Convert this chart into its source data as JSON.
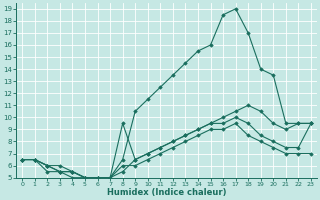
{
  "xlabel": "Humidex (Indice chaleur)",
  "ylabel": "",
  "xlim": [
    -0.5,
    23.5
  ],
  "ylim": [
    5,
    19.5
  ],
  "xticks": [
    0,
    1,
    2,
    3,
    4,
    5,
    6,
    7,
    8,
    9,
    10,
    11,
    12,
    13,
    14,
    15,
    16,
    17,
    18,
    19,
    20,
    21,
    22,
    23
  ],
  "yticks": [
    5,
    6,
    7,
    8,
    9,
    10,
    11,
    12,
    13,
    14,
    15,
    16,
    17,
    18,
    19
  ],
  "bg_color": "#c6e8e4",
  "line_color": "#1a6e5e",
  "line1_x": [
    0,
    1,
    2,
    3,
    4,
    5,
    6,
    7,
    8,
    9,
    10,
    11,
    12,
    13,
    14,
    15,
    16,
    17,
    18,
    19,
    20,
    21,
    22,
    23
  ],
  "line1_y": [
    6.5,
    6.5,
    6.0,
    6.0,
    5.5,
    5.0,
    5.0,
    5.0,
    6.5,
    10.5,
    11.5,
    12.5,
    13.5,
    14.5,
    15.5,
    16.0,
    18.5,
    19.0,
    17.0,
    14.0,
    13.5,
    9.5,
    9.5,
    9.5
  ],
  "line2_x": [
    0,
    1,
    2,
    3,
    4,
    5,
    6,
    7,
    8,
    9,
    10,
    11,
    12,
    13,
    14,
    15,
    16,
    17,
    18,
    19,
    20,
    21,
    22,
    23
  ],
  "line2_y": [
    6.5,
    6.5,
    6.0,
    5.5,
    5.5,
    5.0,
    5.0,
    5.0,
    5.5,
    6.5,
    7.0,
    7.5,
    8.0,
    8.5,
    9.0,
    9.5,
    10.0,
    10.5,
    11.0,
    10.5,
    9.5,
    9.0,
    9.5,
    9.5
  ],
  "line3_x": [
    0,
    1,
    2,
    3,
    4,
    5,
    6,
    7,
    8,
    9,
    10,
    11,
    12,
    13,
    14,
    15,
    16,
    17,
    18,
    19,
    20,
    21,
    22,
    23
  ],
  "line3_y": [
    6.5,
    6.5,
    6.0,
    5.5,
    5.5,
    5.0,
    5.0,
    5.0,
    9.5,
    6.5,
    7.0,
    7.5,
    8.0,
    8.5,
    9.0,
    9.5,
    9.5,
    10.0,
    9.5,
    8.5,
    8.0,
    7.5,
    7.5,
    9.5
  ],
  "line4_x": [
    0,
    1,
    2,
    3,
    4,
    5,
    6,
    7,
    8,
    9,
    10,
    11,
    12,
    13,
    14,
    15,
    16,
    17,
    18,
    19,
    20,
    21,
    22,
    23
  ],
  "line4_y": [
    6.5,
    6.5,
    5.5,
    5.5,
    5.0,
    5.0,
    5.0,
    5.0,
    6.0,
    6.0,
    6.5,
    7.0,
    7.5,
    8.0,
    8.5,
    9.0,
    9.0,
    9.5,
    8.5,
    8.0,
    7.5,
    7.0,
    7.0,
    7.0
  ]
}
